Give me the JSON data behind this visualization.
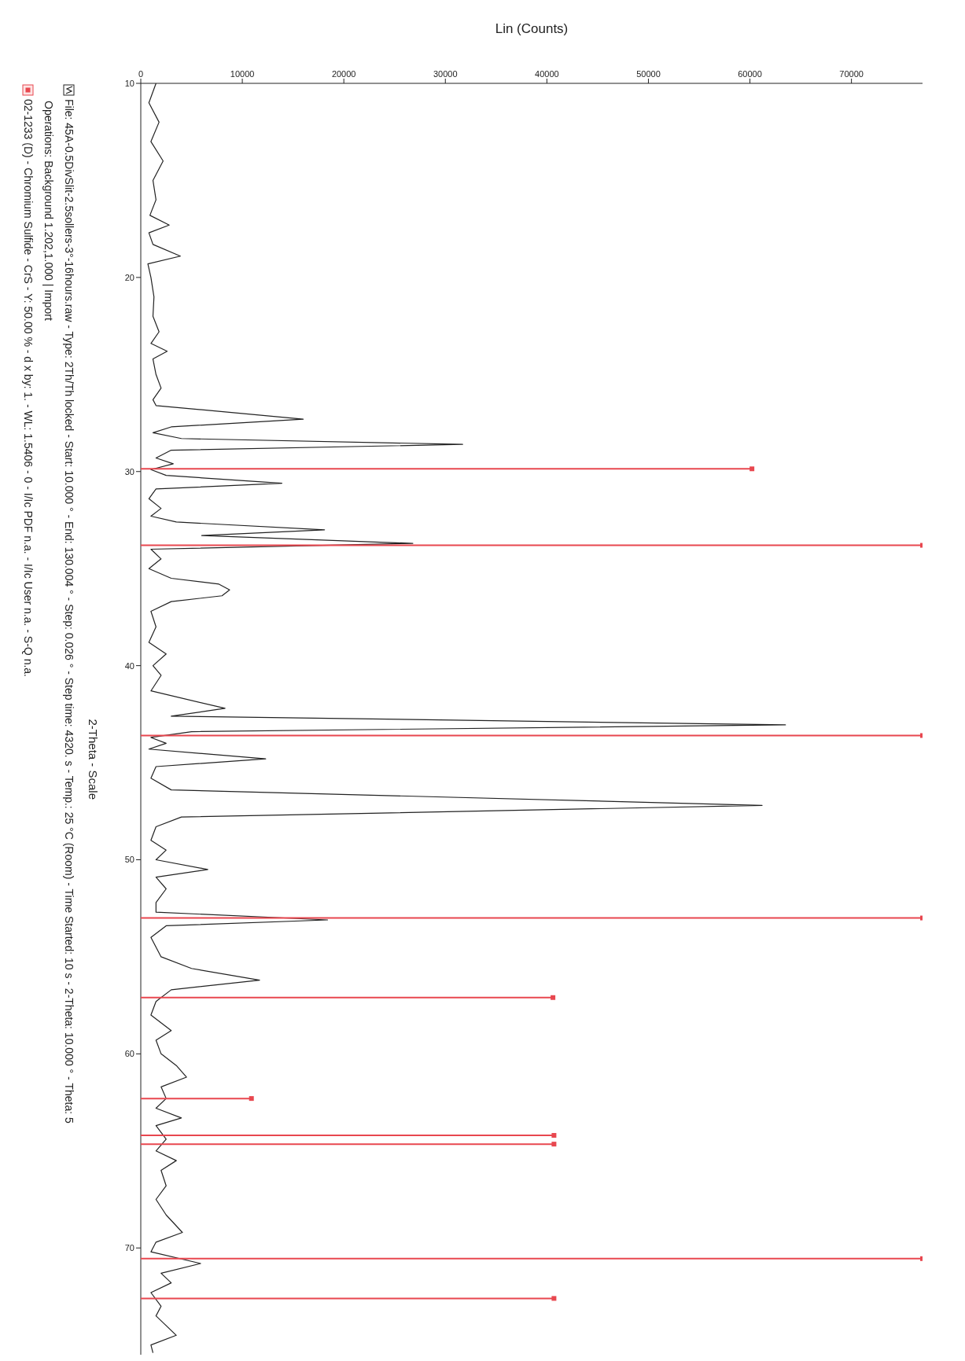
{
  "chart_data": {
    "type": "line",
    "orientation": "horizontal",
    "ylabel": "2-Theta - Scale",
    "xlabel": "Lin (Counts)",
    "ylim": [
      75.5,
      10
    ],
    "yticks": [
      10,
      20,
      30,
      40,
      50,
      60,
      70
    ],
    "xlim": [
      0,
      77000
    ],
    "xticks": [
      0,
      10000,
      20000,
      30000,
      40000,
      50000,
      60000,
      70000
    ],
    "grid": false,
    "legend": "left",
    "marker": "none",
    "annotations": [
      "Operations: Background 1.202,1.000 | Import"
    ],
    "series": [
      {
        "name": "File: 45A-0.5DivSlit-2.5sollers-3°-16hours.raw - Type: 2Th/Th locked - Start: 10.000 ° - End: 130.004 ° - Step: 0.026 ° - Step time: 4320. s - Temp.: 25 °C (Room) - Time Started: 10 s - 2-Theta: 10.000 ° - Theta: 5",
        "color": "#222222",
        "x": [
          10,
          11,
          12,
          13,
          14,
          15,
          16,
          16.8,
          17.3,
          17.7,
          18.3,
          18.9,
          19.3,
          20,
          21,
          22,
          22.8,
          23.4,
          23.8,
          24.2,
          25,
          25.7,
          26.3,
          26.6,
          27.3,
          27.7,
          28.0,
          28.3,
          28.6,
          28.9,
          29.3,
          29.6,
          29.9,
          30.2,
          30.6,
          30.9,
          31.4,
          31.9,
          32.3,
          32.6,
          33.0,
          33.3,
          33.7,
          34.0,
          34.5,
          35.0,
          35.5,
          35.8,
          36.1,
          36.4,
          36.7,
          37.2,
          38,
          38.8,
          39.4,
          40,
          40.5,
          41.3,
          42.2,
          42.6,
          43.05,
          43.4,
          43.7,
          44.0,
          44.3,
          44.8,
          45.2,
          45.8,
          46.4,
          47.2,
          47.8,
          48.3,
          49,
          49.5,
          50,
          50.5,
          50.9,
          51.5,
          52.2,
          52.7,
          53.1,
          53.4,
          54,
          55,
          55.6,
          56.2,
          56.7,
          57.3,
          58,
          58.8,
          59.3,
          60,
          60.6,
          61.2,
          61.7,
          62.3,
          62.8,
          63.3,
          63.7,
          64.4,
          65,
          65.5,
          66,
          66.8,
          67.5,
          68.3,
          69.2,
          69.7,
          70.2,
          70.8,
          71.3,
          71.8,
          72.3,
          73,
          73.5,
          74.5,
          75,
          75.4
        ],
        "values": [
          1500,
          800,
          1800,
          1000,
          2200,
          1200,
          1500,
          900,
          2800,
          800,
          1200,
          3900,
          700,
          1000,
          1300,
          1200,
          1800,
          1000,
          2600,
          1200,
          1500,
          2000,
          1200,
          1500,
          16000,
          3000,
          1200,
          4000,
          31700,
          3000,
          1500,
          3200,
          1000,
          2500,
          13900,
          1500,
          800,
          2000,
          1000,
          3500,
          18100,
          6000,
          26800,
          1000,
          2000,
          800,
          3000,
          7700,
          8750,
          8000,
          3000,
          1000,
          1500,
          800,
          2500,
          1200,
          2000,
          1000,
          8300,
          3000,
          63500,
          5000,
          1000,
          2500,
          800,
          12300,
          1500,
          1000,
          3000,
          61200,
          4000,
          1500,
          1000,
          2500,
          1500,
          6600,
          1500,
          2500,
          1500,
          1500,
          18400,
          2500,
          1000,
          2000,
          5000,
          11700,
          3000,
          1500,
          1000,
          3000,
          1500,
          2000,
          3500,
          4500,
          2000,
          2500,
          1500,
          4000,
          1500,
          2500,
          1500,
          3500,
          2000,
          2500,
          1500,
          2500,
          4100,
          1500,
          1000,
          5900,
          2000,
          3000,
          1000,
          2000,
          1500,
          3500,
          1000,
          1200
        ]
      },
      {
        "type": "lollipop",
        "name": "02-1233 (D) - Chromium Sulfide - CrS - Y: 50.00 % - d x by: 1. - WL: 1.5406 - 0 - I/Ic PDF n.a. - I/Ic User n.a. - S-Q n.a.",
        "color": "#e8474f",
        "marker": "square",
        "x": [
          29.86,
          33.8,
          43.6,
          53.0,
          57.1,
          62.3,
          64.2,
          64.65,
          70.55,
          72.6
        ],
        "values": [
          60200,
          77000,
          77000,
          77000,
          40600,
          10900,
          40700,
          40700,
          77000,
          40700
        ]
      }
    ]
  }
}
